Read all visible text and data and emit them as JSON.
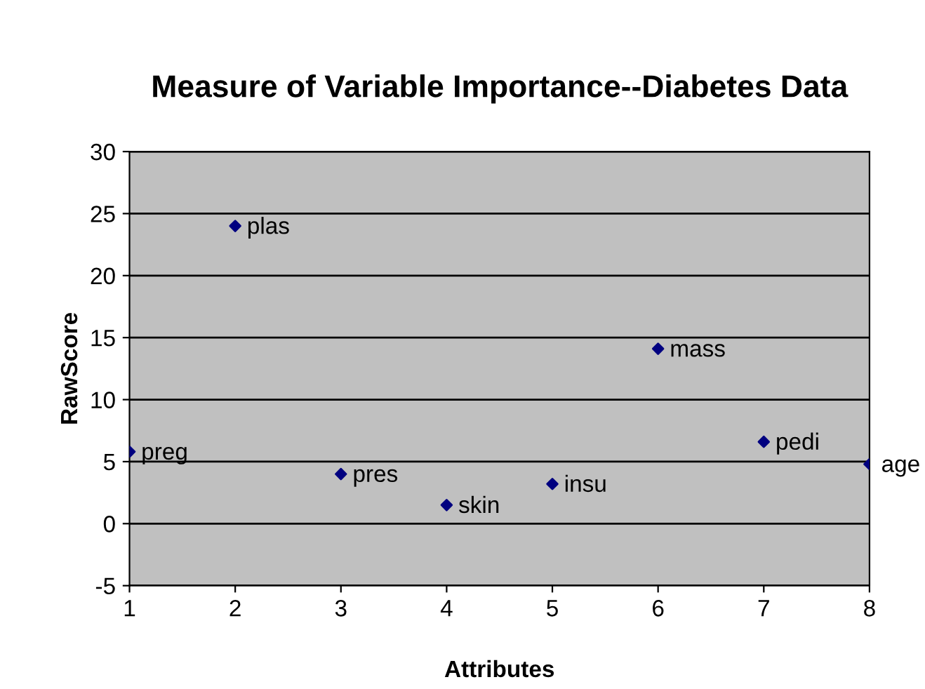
{
  "chart_data": {
    "type": "scatter",
    "title": "Measure of Variable Importance--Diabetes Data",
    "xlabel": "Attributes",
    "ylabel": "RawScore",
    "x": [
      1,
      2,
      3,
      4,
      5,
      6,
      7,
      8
    ],
    "series": [
      {
        "color": "#000080",
        "values": [
          5.8,
          24.0,
          4.0,
          1.5,
          3.2,
          14.1,
          6.6,
          4.8
        ]
      }
    ],
    "annotations": [
      {
        "text": "preg",
        "x": 1,
        "y": 5.8
      },
      {
        "text": "plas",
        "x": 2,
        "y": 24.0
      },
      {
        "text": "pres",
        "x": 3,
        "y": 4.0
      },
      {
        "text": "skin",
        "x": 4,
        "y": 1.5
      },
      {
        "text": "insu",
        "x": 5,
        "y": 3.2
      },
      {
        "text": "mass",
        "x": 6,
        "y": 14.1
      },
      {
        "text": "pedi",
        "x": 7,
        "y": 6.6
      },
      {
        "text": "age",
        "x": 8,
        "y": 4.8
      }
    ],
    "xlim": [
      1,
      8
    ],
    "xticks": [
      1,
      2,
      3,
      4,
      5,
      6,
      7,
      8
    ],
    "ylim": [
      -5,
      30
    ],
    "yticks": [
      -5,
      0,
      5,
      10,
      15,
      20,
      25,
      30
    ],
    "grid": "y",
    "marker": "diamond",
    "legend": false
  }
}
